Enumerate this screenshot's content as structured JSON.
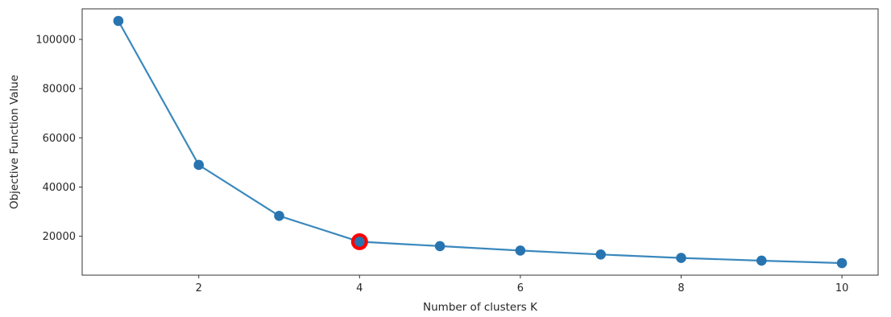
{
  "chart_data": {
    "type": "line",
    "title": "",
    "xlabel": "Number of clusters K",
    "ylabel": "Objective Function Value",
    "x": [
      1,
      2,
      3,
      4,
      5,
      6,
      7,
      8,
      9,
      10
    ],
    "series": [
      {
        "values": [
          107500,
          49000,
          28300,
          17800,
          16000,
          14200,
          12600,
          11200,
          10100,
          9100
        ],
        "color": "#3a88bd",
        "marker_color": "#2874b0"
      }
    ],
    "highlight": {
      "x": 4,
      "y": 17800,
      "color": "#ff0000"
    },
    "xlim": [
      0.55,
      10.45
    ],
    "ylim": [
      4200,
      112400
    ],
    "xticks": [
      2,
      4,
      6,
      8,
      10
    ],
    "yticks": [
      20000,
      40000,
      60000,
      80000,
      100000
    ],
    "grid": false,
    "legend": "none"
  }
}
